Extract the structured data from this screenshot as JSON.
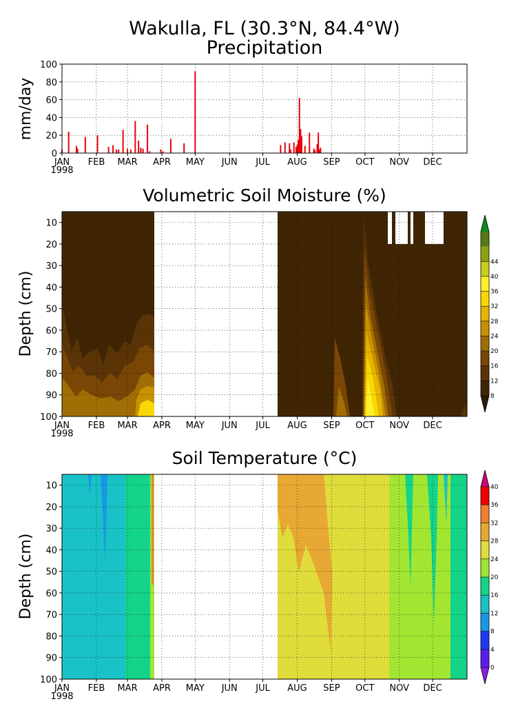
{
  "figure": {
    "title_line1": "Wakulla, FL   (30.3°N, 84.4°W)",
    "title_line2": "Precipitation",
    "year_label": "1998",
    "months": [
      "JAN",
      "FEB",
      "MAR",
      "APR",
      "MAY",
      "JUN",
      "JUL",
      "AUG",
      "SEP",
      "OCT",
      "NOV",
      "DEC"
    ]
  },
  "chart_data": [
    {
      "type": "bar",
      "title": "Precipitation",
      "ylabel": "mm/day",
      "ylim": [
        0,
        100
      ],
      "yticks": [
        0,
        20,
        40,
        60,
        80,
        100
      ],
      "xlim_day_of_year": [
        1,
        366
      ],
      "grid": true,
      "color": "#e8000b",
      "x_day_of_year": [
        1,
        7,
        14,
        15,
        22,
        33,
        43,
        47,
        50,
        52,
        56,
        60,
        63,
        67,
        70,
        72,
        74,
        78,
        80,
        90,
        92,
        99,
        111,
        121,
        198,
        202,
        206,
        207,
        210,
        212,
        213,
        214,
        215,
        216,
        217,
        220,
        224,
        228,
        229,
        231,
        232,
        233,
        234
      ],
      "values": [
        4,
        24,
        8,
        5,
        18,
        20,
        7,
        9,
        4,
        4,
        26,
        5,
        4,
        36,
        14,
        6,
        5,
        32,
        2,
        4,
        2,
        16,
        11,
        92,
        9,
        12,
        11,
        4,
        12,
        7,
        9,
        15,
        62,
        27,
        19,
        8,
        23,
        5,
        3,
        10,
        23,
        4,
        6
      ]
    },
    {
      "type": "heatmap",
      "title": "Volumetric Soil Moisture (%)",
      "xlabel": "",
      "ylabel": "Depth (cm)",
      "y_range_cm": [
        100,
        5
      ],
      "yticks": [
        10,
        20,
        30,
        40,
        50,
        60,
        70,
        80,
        90,
        100
      ],
      "colorbar_levels": [
        8,
        12,
        16,
        20,
        24,
        28,
        32,
        36,
        40,
        44
      ],
      "colorbar_colors": [
        "#2e1a04",
        "#3f2504",
        "#5a3406",
        "#7a4606",
        "#a06e04",
        "#c89100",
        "#e6b300",
        "#f8d800",
        "#fff02a",
        "#c8cf1a",
        "#8ea312",
        "#557a12",
        "#0c8a1c"
      ],
      "missing_intervals_day_of_year": [
        [
          91,
          197
        ]
      ],
      "background_value_pct": 6
    },
    {
      "type": "heatmap",
      "title": "Soil Temperature (°C)",
      "xlabel": "",
      "ylabel": "Depth (cm)",
      "y_range_cm": [
        100,
        5
      ],
      "yticks": [
        10,
        20,
        30,
        40,
        50,
        60,
        70,
        80,
        90,
        100
      ],
      "colorbar_levels": [
        0,
        4,
        8,
        12,
        16,
        20,
        24,
        28,
        32,
        36,
        40
      ],
      "colorbar_colors": [
        "#8a1ee0",
        "#5a1ee8",
        "#1a3cf0",
        "#1a96e6",
        "#19c2c6",
        "#14d48a",
        "#a2e632",
        "#e0dc3c",
        "#e8a834",
        "#f08030",
        "#f00000",
        "#c80a78"
      ],
      "missing_intervals_day_of_year": [
        [
          91,
          197
        ]
      ]
    }
  ]
}
